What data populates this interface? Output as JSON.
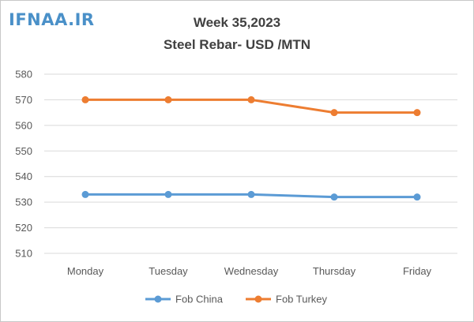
{
  "logo_text": "IFNAA.IR",
  "chart_data": {
    "type": "line",
    "title": "Week 35,2023",
    "subtitle": "Steel Rebar- USD /MTN",
    "categories": [
      "Monday",
      "Tuesday",
      "Wednesday",
      "Thursday",
      "Friday"
    ],
    "series": [
      {
        "name": "Fob China",
        "color": "#5b9bd5",
        "values": [
          533,
          533,
          533,
          532,
          532
        ]
      },
      {
        "name": "Fob Turkey",
        "color": "#ed7d31",
        "values": [
          570,
          570,
          570,
          565,
          565
        ]
      }
    ],
    "ylim": [
      510,
      580
    ],
    "yticks": [
      "510",
      "520",
      "530",
      "540",
      "550",
      "560",
      "570",
      "580"
    ],
    "grid": true,
    "legend": "bottom"
  }
}
